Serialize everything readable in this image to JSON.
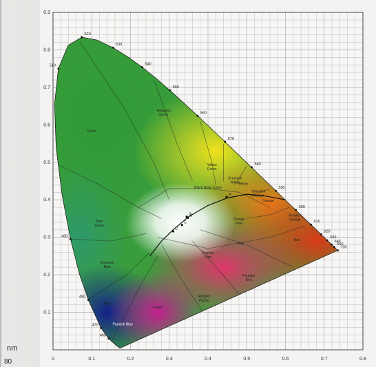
{
  "chart_data": {
    "type": "diagram",
    "axes": {
      "x_ticks": [
        "0",
        "0.1",
        "0.2",
        "0.3",
        "0.4",
        "0.5",
        "0.6",
        "0.7",
        "0.8"
      ],
      "y_ticks": [
        "0.1",
        "0.2",
        "0.3",
        "0.4",
        "0.5",
        "0.6",
        "0.7",
        "0.8",
        "0.9"
      ],
      "xlim": [
        0,
        0.8
      ],
      "ylim": [
        0,
        0.9
      ]
    },
    "wavelengths": [
      {
        "label": "520",
        "x": 0.074,
        "y": 0.834
      },
      {
        "label": "530",
        "x": 0.155,
        "y": 0.806
      },
      {
        "label": "540",
        "x": 0.23,
        "y": 0.754
      },
      {
        "label": "550",
        "x": 0.302,
        "y": 0.692
      },
      {
        "label": "560",
        "x": 0.373,
        "y": 0.624
      },
      {
        "label": "570",
        "x": 0.444,
        "y": 0.555
      },
      {
        "label": "580",
        "x": 0.513,
        "y": 0.487
      },
      {
        "label": "590",
        "x": 0.575,
        "y": 0.424
      },
      {
        "label": "600",
        "x": 0.627,
        "y": 0.373
      },
      {
        "label": "610",
        "x": 0.666,
        "y": 0.334
      },
      {
        "label": "620",
        "x": 0.692,
        "y": 0.308
      },
      {
        "label": "630",
        "x": 0.708,
        "y": 0.292
      },
      {
        "label": "640",
        "x": 0.719,
        "y": 0.281
      },
      {
        "label": "650",
        "x": 0.726,
        "y": 0.274
      },
      {
        "label": "700",
        "x": 0.735,
        "y": 0.265
      },
      {
        "label": "510",
        "x": 0.014,
        "y": 0.75
      },
      {
        "label": "490",
        "x": 0.045,
        "y": 0.295
      },
      {
        "label": "480",
        "x": 0.091,
        "y": 0.133
      },
      {
        "label": "470",
        "x": 0.124,
        "y": 0.058
      },
      {
        "label": "460",
        "x": 0.144,
        "y": 0.03
      }
    ],
    "regions": [
      {
        "label": "Green",
        "x": 0.1,
        "y": 0.58
      },
      {
        "label": "Yellowish Green",
        "x": 0.285,
        "y": 0.635
      },
      {
        "label": "Yellow Green",
        "x": 0.41,
        "y": 0.49
      },
      {
        "label": "Greenish Yellow",
        "x": 0.47,
        "y": 0.455
      },
      {
        "label": "Yellow",
        "x": 0.49,
        "y": 0.44
      },
      {
        "label": "Yellowish Orange",
        "x": 0.53,
        "y": 0.42
      },
      {
        "label": "Orange",
        "x": 0.555,
        "y": 0.395
      },
      {
        "label": "Reddish Orange",
        "x": 0.625,
        "y": 0.355
      },
      {
        "label": "Red",
        "x": 0.63,
        "y": 0.29
      },
      {
        "label": "Blue Green",
        "x": 0.12,
        "y": 0.34
      },
      {
        "label": "Greenish Blue",
        "x": 0.14,
        "y": 0.23
      },
      {
        "label": "Blue",
        "x": 0.14,
        "y": 0.12
      },
      {
        "label": "Purplish Blue",
        "x": 0.18,
        "y": 0.065
      },
      {
        "label": "Purple",
        "x": 0.27,
        "y": 0.11
      },
      {
        "label": "Reddish Purple",
        "x": 0.39,
        "y": 0.14
      },
      {
        "label": "Purplish Red",
        "x": 0.505,
        "y": 0.195
      },
      {
        "label": "Purplish Pink",
        "x": 0.4,
        "y": 0.255
      },
      {
        "label": "Pink",
        "x": 0.485,
        "y": 0.28
      },
      {
        "label": "Orange Pink",
        "x": 0.48,
        "y": 0.345
      },
      {
        "label": "Black Body Curve",
        "x": 0.4,
        "y": 0.43
      }
    ],
    "planck_points": [
      "A",
      "B",
      "C",
      "D",
      "E"
    ]
  },
  "outside": {
    "unit_label": "nm",
    "number": "80"
  },
  "colors": {
    "green": "#39a63a",
    "yellow": "#e8dc2a",
    "orange": "#e8741c",
    "red": "#d7421c",
    "blue": "#1b2a8c",
    "purple": "#b8238f",
    "pink": "#d63a6a"
  }
}
